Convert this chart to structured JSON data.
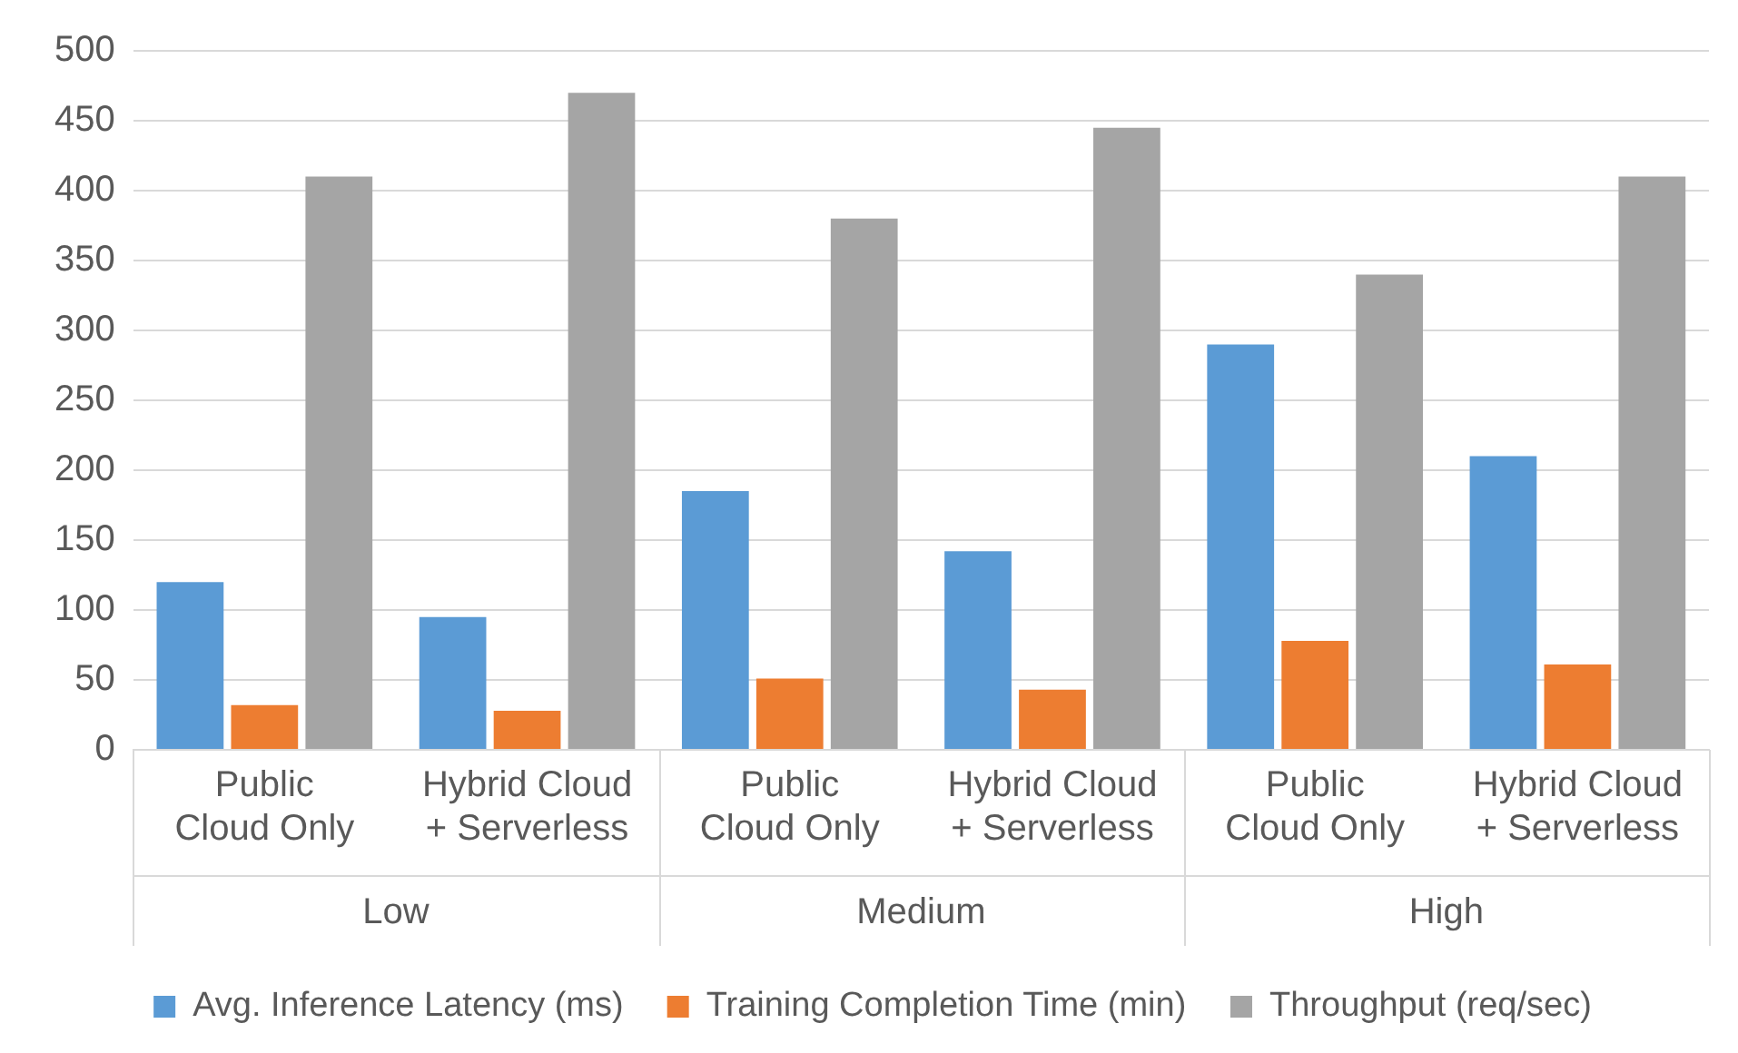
{
  "chart_data": {
    "type": "bar",
    "categories": [
      "Public Cloud Only",
      "Hybrid Cloud + Serverless",
      "Public Cloud Only",
      "Hybrid Cloud + Serverless",
      "Public Cloud Only",
      "Hybrid Cloud + Serverless"
    ],
    "annotations": [
      "Low",
      "Medium",
      "High"
    ],
    "series": [
      {
        "name": "Avg. Inference Latency (ms)",
        "color": "#5b9bd5",
        "values": [
          120,
          95,
          185,
          142,
          290,
          210
        ]
      },
      {
        "name": "Training Completion Time (min)",
        "color": "#ed7d31",
        "values": [
          32,
          28,
          51,
          43,
          78,
          61
        ]
      },
      {
        "name": "Throughput (req/sec)",
        "color": "#a5a5a5",
        "values": [
          410,
          470,
          380,
          445,
          340,
          410
        ]
      }
    ],
    "ylim": [
      0,
      500
    ],
    "yticks": [
      0,
      50,
      100,
      150,
      200,
      250,
      300,
      350,
      400,
      450,
      500
    ],
    "grid": "y",
    "legend": "bottom"
  }
}
